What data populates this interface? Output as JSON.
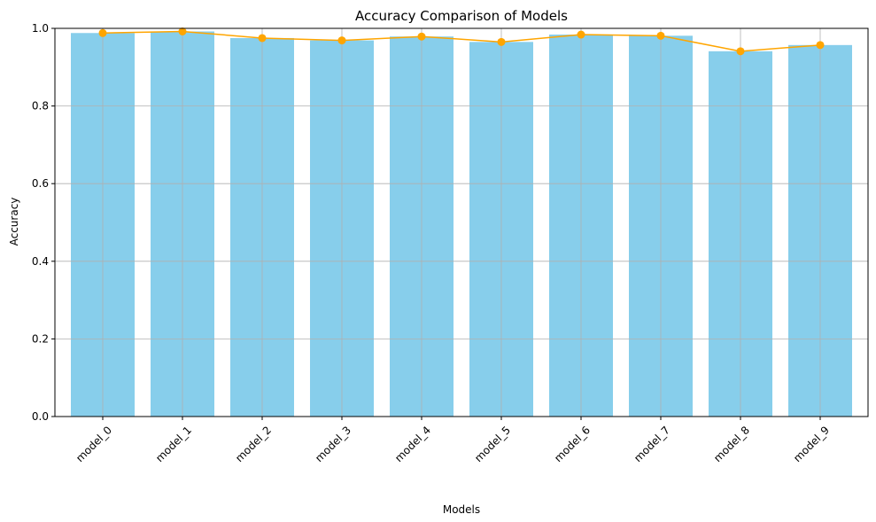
{
  "chart_data": {
    "type": "bar",
    "title": "Accuracy Comparison of Models",
    "xlabel": "Models",
    "ylabel": "Accuracy",
    "categories": [
      "model_0",
      "model_1",
      "model_2",
      "model_3",
      "model_4",
      "model_5",
      "model_6",
      "model_7",
      "model_8",
      "model_9"
    ],
    "series": [
      {
        "kind": "bar",
        "values": [
          0.988,
          0.992,
          0.975,
          0.969,
          0.979,
          0.965,
          0.984,
          0.981,
          0.941,
          0.957
        ],
        "color": "#87ceeb"
      },
      {
        "kind": "line",
        "values": [
          0.988,
          0.992,
          0.975,
          0.969,
          0.979,
          0.965,
          0.984,
          0.981,
          0.941,
          0.957
        ],
        "color": "#ffa500"
      }
    ],
    "ylim": [
      0,
      1.0
    ],
    "yticks": [
      "0.0",
      "0.2",
      "0.4",
      "0.6",
      "0.8",
      "1.0"
    ],
    "grid": true,
    "grid_color": "#b0b0b0",
    "xtick_rotation": 45
  }
}
